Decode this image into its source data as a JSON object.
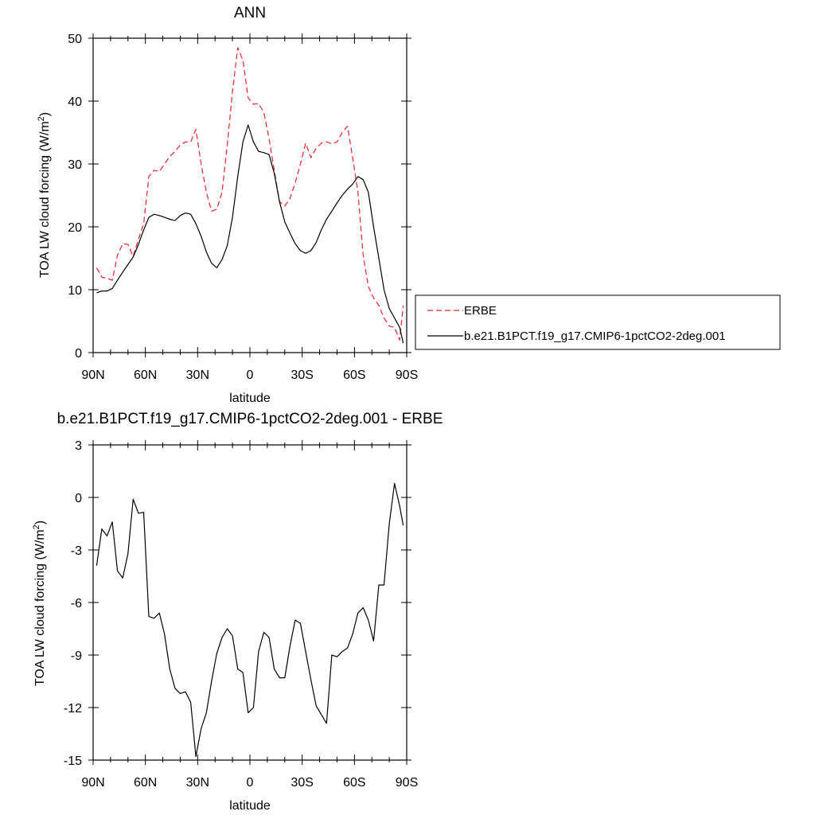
{
  "chart_data": [
    {
      "type": "line",
      "title": "ANN",
      "xlabel": "latitude",
      "ylabel": "TOA LW cloud forcing (W/m",
      "ylabel_sup": "2",
      "ylabel_tail": ")",
      "xlim": [
        90,
        -90
      ],
      "ylim": [
        0,
        50
      ],
      "xticks": [
        90,
        60,
        30,
        0,
        -30,
        -60,
        -90
      ],
      "xtick_labels": [
        "90N",
        "60N",
        "30N",
        "0",
        "30S",
        "60S",
        "90S"
      ],
      "yticks": [
        0,
        10,
        20,
        30,
        40,
        50
      ],
      "ytick_labels": [
        "0",
        "10",
        "20",
        "30",
        "40",
        "50"
      ],
      "legend_position": "right",
      "series": [
        {
          "name": "ERBE",
          "color": "#e8202a",
          "style": "dashed",
          "x": [
            88,
            85,
            82,
            79,
            76,
            73,
            70,
            67,
            64,
            61,
            58,
            55,
            52,
            49,
            46,
            43,
            40,
            37,
            34,
            31,
            28,
            25,
            22,
            19,
            16,
            13,
            10,
            7,
            4,
            1,
            -2,
            -5,
            -8,
            -11,
            -14,
            -17,
            -20,
            -23,
            -26,
            -29,
            -32,
            -35,
            -38,
            -41,
            -44,
            -47,
            -50,
            -53,
            -56,
            -59,
            -62,
            -65,
            -68,
            -71,
            -74,
            -77,
            -80,
            -83,
            -86,
            -88
          ],
          "values": [
            13.5,
            12.0,
            11.8,
            11.5,
            15.5,
            17.3,
            17.2,
            15.3,
            18.0,
            20.5,
            28.0,
            29.0,
            28.8,
            30.0,
            31.2,
            32.0,
            33.0,
            33.5,
            33.5,
            35.5,
            30.0,
            25.5,
            22.5,
            22.8,
            25.5,
            33.0,
            41.5,
            48.5,
            46.5,
            40.5,
            39.5,
            39.6,
            38.2,
            34.0,
            29.0,
            24.0,
            23.3,
            24.5,
            27.0,
            30.0,
            33.3,
            31.0,
            32.5,
            33.3,
            33.5,
            33.2,
            33.5,
            35.0,
            36.0,
            31.0,
            25.5,
            15.5,
            10.5,
            8.7,
            7.5,
            5.5,
            4.2,
            4.0,
            2.0,
            7.5
          ]
        },
        {
          "name": "b.e21.B1PCT.f19_g17.CMIP6-1pctCO2-2deg.001",
          "color": "#000000",
          "style": "solid",
          "x": [
            88,
            85,
            82,
            79,
            76,
            73,
            70,
            67,
            64,
            61,
            58,
            55,
            52,
            49,
            46,
            43,
            40,
            37,
            34,
            31,
            28,
            25,
            22,
            19,
            16,
            13,
            10,
            7,
            4,
            1,
            -2,
            -5,
            -8,
            -11,
            -14,
            -17,
            -20,
            -23,
            -26,
            -29,
            -32,
            -35,
            -38,
            -41,
            -44,
            -47,
            -50,
            -53,
            -56,
            -59,
            -62,
            -65,
            -68,
            -71,
            -74,
            -77,
            -80,
            -83,
            -86,
            -88
          ],
          "values": [
            9.5,
            9.8,
            9.8,
            10.2,
            11.5,
            12.8,
            14.0,
            15.2,
            17.2,
            19.5,
            21.5,
            22.0,
            21.8,
            21.5,
            21.2,
            21.0,
            21.8,
            22.2,
            22.0,
            20.5,
            18.5,
            16.0,
            14.2,
            13.5,
            14.8,
            17.0,
            21.5,
            28.0,
            33.5,
            36.2,
            33.5,
            32.0,
            31.8,
            31.5,
            28.5,
            24.0,
            20.8,
            19.0,
            17.3,
            16.2,
            15.8,
            16.2,
            17.5,
            19.5,
            21.2,
            22.5,
            23.8,
            25.0,
            26.0,
            26.8,
            28.0,
            27.5,
            25.5,
            20.0,
            15.0,
            10.0,
            7.0,
            5.5,
            4.0,
            1.5
          ]
        }
      ]
    },
    {
      "type": "line",
      "title": "b.e21.B1PCT.f19_g17.CMIP6-1pctCO2-2deg.001 - ERBE",
      "xlabel": "latitude",
      "ylabel": "TOA LW cloud forcing (W/m",
      "ylabel_sup": "2",
      "ylabel_tail": ")",
      "xlim": [
        90,
        -90
      ],
      "ylim": [
        -15,
        3
      ],
      "xticks": [
        90,
        60,
        30,
        0,
        -30,
        -60,
        -90
      ],
      "xtick_labels": [
        "90N",
        "60N",
        "30N",
        "0",
        "30S",
        "60S",
        "90S"
      ],
      "yticks": [
        -15,
        -12,
        -9,
        -6,
        -3,
        0,
        3
      ],
      "ytick_labels": [
        "-15",
        "-12",
        "-9",
        "-6",
        "-3",
        "0",
        "3"
      ],
      "series": [
        {
          "color": "#000000",
          "style": "solid",
          "x": [
            88,
            85,
            82,
            79,
            76,
            73,
            70,
            67,
            64,
            61,
            58,
            55,
            52,
            49,
            46,
            43,
            40,
            37,
            34,
            31,
            28,
            25,
            22,
            19,
            16,
            13,
            10,
            7,
            4,
            1,
            -2,
            -5,
            -8,
            -11,
            -14,
            -17,
            -20,
            -23,
            -26,
            -29,
            -32,
            -35,
            -38,
            -41,
            -44,
            -47,
            -50,
            -53,
            -56,
            -59,
            -62,
            -65,
            -68,
            -71,
            -74,
            -77,
            -80,
            -83,
            -86,
            -88
          ],
          "values": [
            -3.9,
            -1.8,
            -2.2,
            -1.4,
            -4.2,
            -4.6,
            -3.2,
            -0.1,
            -0.9,
            -0.85,
            -6.8,
            -6.9,
            -6.6,
            -7.8,
            -9.8,
            -10.9,
            -11.2,
            -11.1,
            -11.7,
            -14.8,
            -13.2,
            -12.3,
            -10.5,
            -8.9,
            -8.0,
            -7.5,
            -7.9,
            -9.8,
            -10.0,
            -12.3,
            -12.0,
            -8.8,
            -7.7,
            -8.0,
            -9.8,
            -10.3,
            -10.3,
            -8.5,
            -7.0,
            -7.2,
            -8.8,
            -10.4,
            -11.9,
            -12.4,
            -12.9,
            -9.0,
            -9.1,
            -8.8,
            -8.6,
            -7.8,
            -6.6,
            -6.3,
            -7.0,
            -8.2,
            -5.0,
            -5.0,
            -1.5,
            0.8,
            -0.5,
            -1.6
          ]
        }
      ]
    }
  ]
}
